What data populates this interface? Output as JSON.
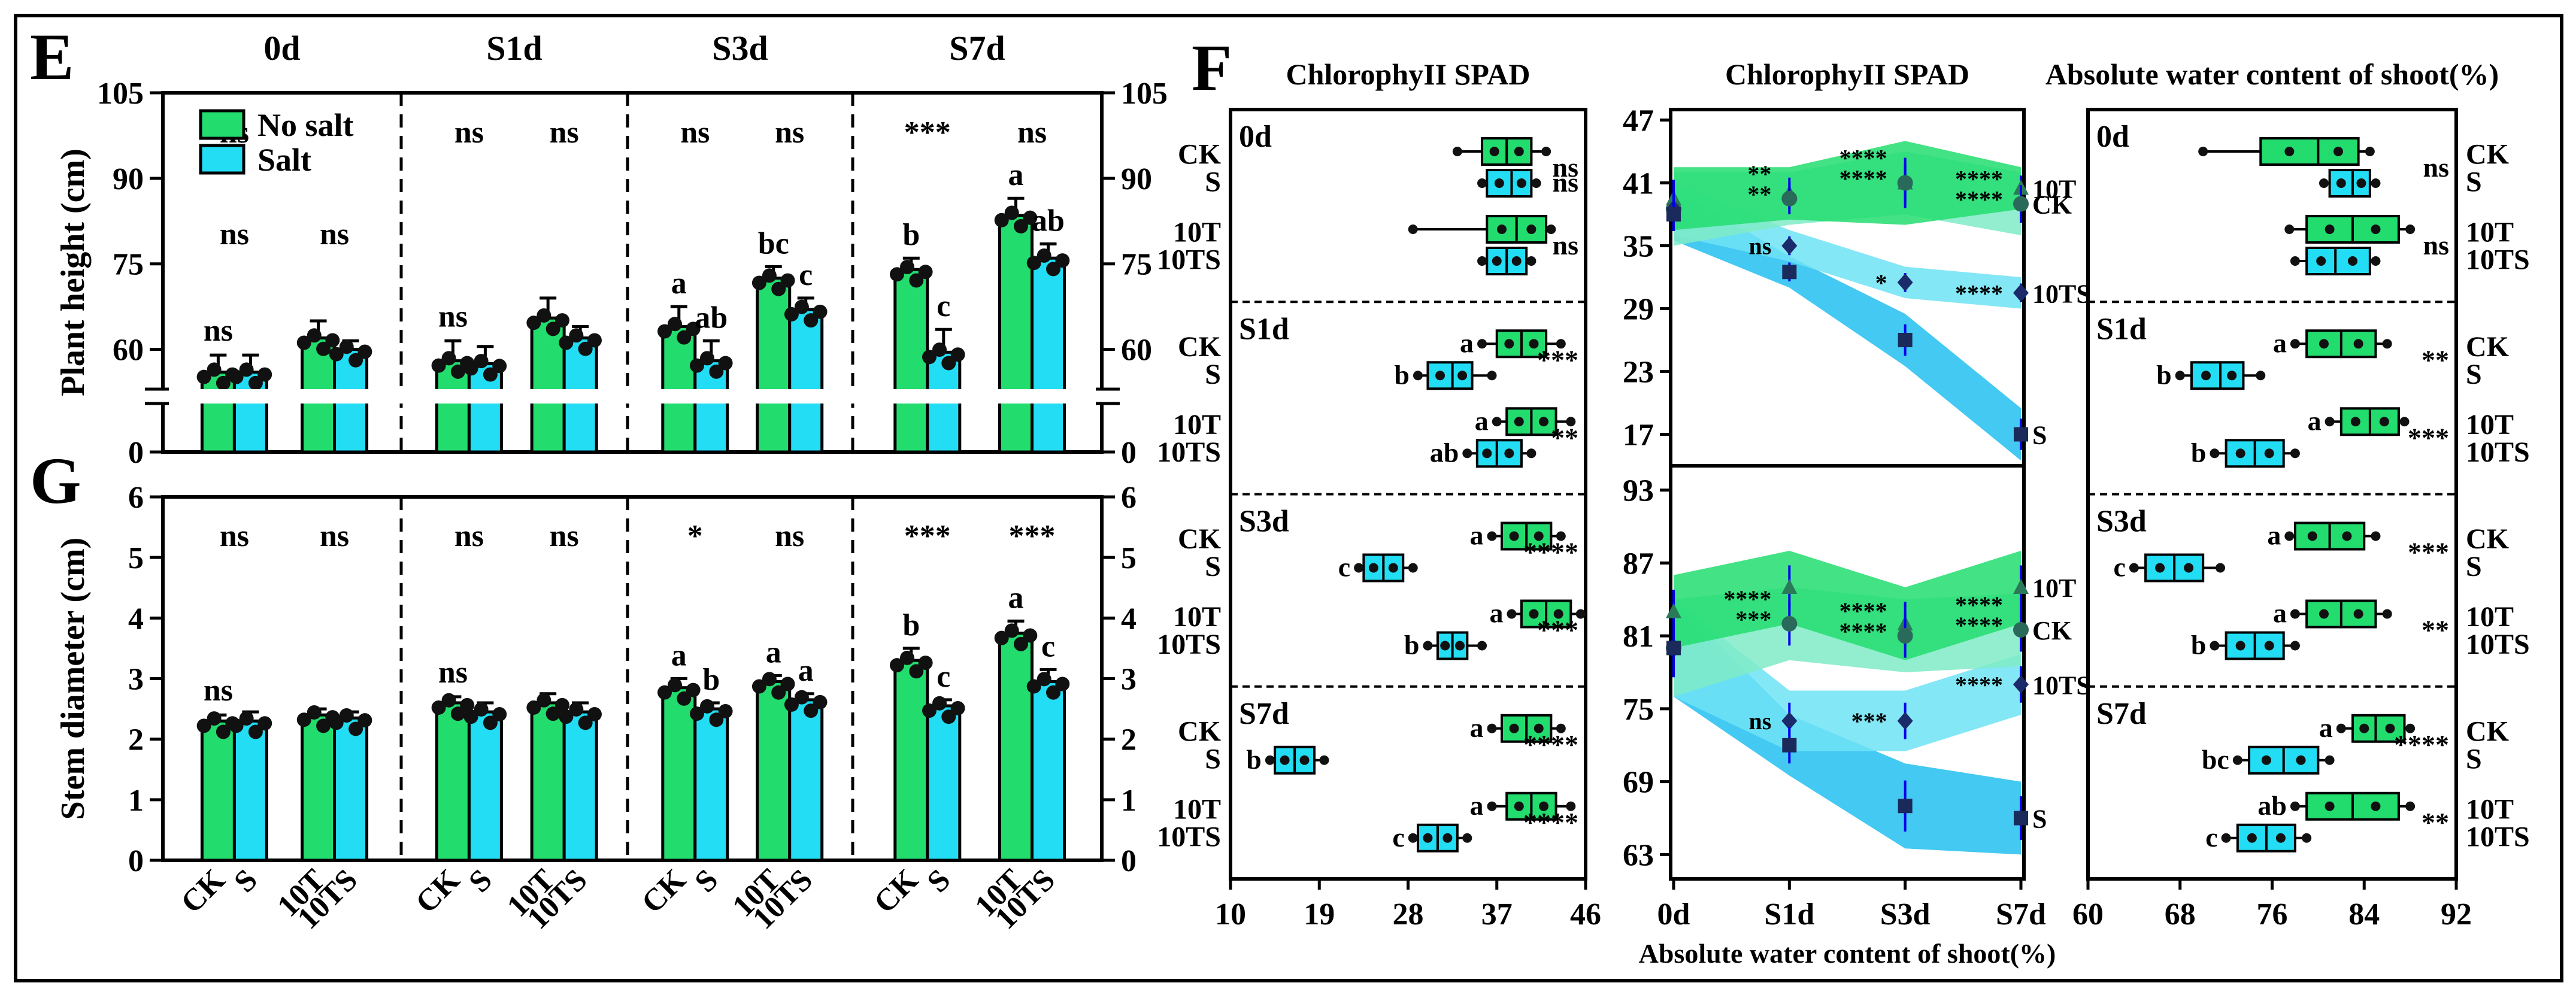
{
  "colors": {
    "no_salt": "#22DD6E",
    "salt": "#22DDF4",
    "ck_band": "#22DD6E",
    "t_band": "#7FEBC6",
    "ts_band": "#6FE3F4",
    "s_band": "#22BFF0",
    "err": "#0000EE"
  },
  "panel_letters": {
    "E": "E",
    "F": "F",
    "G": "G"
  },
  "chart_data": [
    {
      "id": "E",
      "type": "bar",
      "title": "",
      "ylabel": "Plant height (cm)",
      "ylim": [
        0,
        105
      ],
      "yticks_left": [
        "0",
        "60",
        "75",
        "90",
        "105"
      ],
      "yticks_right": [
        "0",
        "60",
        "75",
        "90",
        "105"
      ],
      "time_points": [
        "0d",
        "S1d",
        "S3d",
        "S7d"
      ],
      "legend": [
        "No salt",
        "Salt"
      ],
      "groups": [
        {
          "time": "0d",
          "pair": "CK/S",
          "no_salt": 56.0,
          "salt": 56.0,
          "no_salt_err": 3.0,
          "salt_err": 3.0,
          "letters": [
            "",
            ""
          ],
          "top_sig": "ns",
          "mid_sig": "ns",
          "bar_sig": "ns"
        },
        {
          "time": "0d",
          "pair": "10T/10TS",
          "no_salt": 62.0,
          "salt": 60.0,
          "no_salt_err": 3.0,
          "salt_err": 1.5,
          "letters": [
            "",
            ""
          ],
          "top_sig": "",
          "mid_sig": "ns",
          "bar_sig": ""
        },
        {
          "time": "S1d",
          "pair": "CK/S",
          "no_salt": 58.0,
          "salt": 57.5,
          "no_salt_err": 3.5,
          "salt_err": 3.0,
          "letters": [
            "",
            ""
          ],
          "top_sig": "ns",
          "mid_sig": "",
          "bar_sig": "ns"
        },
        {
          "time": "S1d",
          "pair": "10T/10TS",
          "no_salt": 65.5,
          "salt": 62.0,
          "no_salt_err": 3.5,
          "salt_err": 2.0,
          "letters": [
            "",
            ""
          ],
          "top_sig": "ns",
          "mid_sig": "",
          "bar_sig": ""
        },
        {
          "time": "S3d",
          "pair": "CK/S",
          "no_salt": 64.0,
          "salt": 58.0,
          "no_salt_err": 3.5,
          "salt_err": 3.5,
          "letters": [
            "a",
            "ab"
          ],
          "top_sig": "ns",
          "mid_sig": "",
          "bar_sig": ""
        },
        {
          "time": "S3d",
          "pair": "10T/10TS",
          "no_salt": 72.5,
          "salt": 67.0,
          "no_salt_err": 2.0,
          "salt_err": 2.0,
          "letters": [
            "bc",
            "c"
          ],
          "top_sig": "ns",
          "mid_sig": "",
          "bar_sig": ""
        },
        {
          "time": "S7d",
          "pair": "CK/S",
          "no_salt": 74.0,
          "salt": 59.5,
          "no_salt_err": 2.0,
          "salt_err": 4.0,
          "letters": [
            "b",
            "c"
          ],
          "top_sig": "***",
          "mid_sig": "",
          "bar_sig": ""
        },
        {
          "time": "S7d",
          "pair": "10T/10TS",
          "no_salt": 83.5,
          "salt": 76.0,
          "no_salt_err": 3.0,
          "salt_err": 2.5,
          "letters": [
            "a",
            "ab"
          ],
          "top_sig": "ns",
          "mid_sig": "",
          "bar_sig": ""
        }
      ]
    },
    {
      "id": "G",
      "type": "bar",
      "title": "",
      "ylabel": "Stem diameter (cm)",
      "ylim": [
        0,
        6
      ],
      "yticks_left": [
        "0",
        "1",
        "2",
        "3",
        "4",
        "5",
        "6"
      ],
      "yticks_right": [
        "0",
        "1",
        "2",
        "3",
        "4",
        "5",
        "6"
      ],
      "x_group_labels": [
        [
          "CK",
          "S"
        ],
        [
          "10T",
          "10TS"
        ]
      ],
      "groups": [
        {
          "time": "0d",
          "pair": "CK/S",
          "no_salt": 2.3,
          "salt": 2.3,
          "no_salt_err": 0.1,
          "salt_err": 0.15,
          "letters": [
            "",
            ""
          ],
          "top_sig": "ns",
          "bar_sig": "ns"
        },
        {
          "time": "0d",
          "pair": "10T/10TS",
          "no_salt": 2.4,
          "salt": 2.35,
          "no_salt_err": 0.1,
          "salt_err": 0.1,
          "letters": [
            "",
            ""
          ],
          "top_sig": "ns",
          "bar_sig": ""
        },
        {
          "time": "S1d",
          "pair": "CK/S",
          "no_salt": 2.6,
          "salt": 2.45,
          "no_salt_err": 0.1,
          "salt_err": 0.15,
          "letters": [
            "",
            ""
          ],
          "top_sig": "ns",
          "bar_sig": "ns"
        },
        {
          "time": "S1d",
          "pair": "10T/10TS",
          "no_salt": 2.6,
          "salt": 2.45,
          "no_salt_err": 0.15,
          "salt_err": 0.15,
          "letters": [
            "",
            ""
          ],
          "top_sig": "ns",
          "bar_sig": ""
        },
        {
          "time": "S3d",
          "pair": "CK/S",
          "no_salt": 2.85,
          "salt": 2.5,
          "no_salt_err": 0.15,
          "salt_err": 0.1,
          "letters": [
            "a",
            "b"
          ],
          "top_sig": "*",
          "bar_sig": ""
        },
        {
          "time": "S3d",
          "pair": "10T/10TS",
          "no_salt": 2.95,
          "salt": 2.65,
          "no_salt_err": 0.1,
          "salt_err": 0.1,
          "letters": [
            "a",
            "a"
          ],
          "top_sig": "ns",
          "bar_sig": ""
        },
        {
          "time": "S7d",
          "pair": "CK/S",
          "no_salt": 3.3,
          "salt": 2.55,
          "no_salt_err": 0.2,
          "salt_err": 0.1,
          "letters": [
            "b",
            "c"
          ],
          "top_sig": "***",
          "bar_sig": ""
        },
        {
          "time": "S7d",
          "pair": "10T/10TS",
          "no_salt": 3.75,
          "salt": 2.95,
          "no_salt_err": 0.2,
          "salt_err": 0.2,
          "letters": [
            "a",
            "c"
          ],
          "top_sig": "***",
          "bar_sig": ""
        }
      ]
    },
    {
      "id": "F-left",
      "type": "box",
      "title": "ChlorophyII SPAD",
      "xlim": [
        10,
        46
      ],
      "xticks": [
        "10",
        "19",
        "28",
        "37",
        "46"
      ],
      "periods": [
        "0d",
        "S1d",
        "S3d",
        "S7d"
      ],
      "row_labels": [
        "CK",
        "S",
        "10T",
        "10TS"
      ],
      "boxes": [
        {
          "period": "0d",
          "row": "CK",
          "q1": 35.5,
          "median": 38.0,
          "q3": 40.5,
          "min": 33.0,
          "max": 42.0,
          "letter": "",
          "sig": "ns"
        },
        {
          "period": "0d",
          "row": "S",
          "q1": 36.0,
          "median": 38.5,
          "q3": 40.5,
          "min": 35.5,
          "max": 41.0,
          "letter": "",
          "sig": "ns"
        },
        {
          "period": "0d",
          "row": "10T",
          "q1": 36.0,
          "median": 39.0,
          "q3": 42.0,
          "min": 28.5,
          "max": 42.5,
          "letter": "",
          "sig": "ns"
        },
        {
          "period": "0d",
          "row": "10TS",
          "q1": 36.0,
          "median": 38.0,
          "q3": 40.0,
          "min": 35.5,
          "max": 40.5,
          "letter": "",
          "sig": ""
        },
        {
          "period": "S1d",
          "row": "CK",
          "q1": 37.0,
          "median": 39.5,
          "q3": 42.0,
          "min": 35.5,
          "max": 43.5,
          "letter": "a",
          "sig": "***"
        },
        {
          "period": "S1d",
          "row": "S",
          "q1": 30.0,
          "median": 32.5,
          "q3": 34.5,
          "min": 29.0,
          "max": 36.5,
          "letter": "b",
          "sig": ""
        },
        {
          "period": "S1d",
          "row": "10T",
          "q1": 38.0,
          "median": 40.5,
          "q3": 43.0,
          "min": 37.0,
          "max": 44.5,
          "letter": "a",
          "sig": "**"
        },
        {
          "period": "S1d",
          "row": "10TS",
          "q1": 35.0,
          "median": 37.0,
          "q3": 39.5,
          "min": 34.0,
          "max": 40.5,
          "letter": "ab",
          "sig": ""
        },
        {
          "period": "S3d",
          "row": "CK",
          "q1": 37.5,
          "median": 40.0,
          "q3": 42.5,
          "min": 36.5,
          "max": 43.5,
          "letter": "a",
          "sig": "****"
        },
        {
          "period": "S3d",
          "row": "S",
          "q1": 23.5,
          "median": 25.5,
          "q3": 27.5,
          "min": 23.0,
          "max": 28.5,
          "letter": "c",
          "sig": ""
        },
        {
          "period": "S3d",
          "row": "10T",
          "q1": 39.5,
          "median": 42.0,
          "q3": 44.5,
          "min": 38.5,
          "max": 45.5,
          "letter": "a",
          "sig": "***"
        },
        {
          "period": "S3d",
          "row": "10TS",
          "q1": 31.0,
          "median": 32.5,
          "q3": 34.0,
          "min": 30.0,
          "max": 35.5,
          "letter": "b",
          "sig": ""
        },
        {
          "period": "S7d",
          "row": "CK",
          "q1": 37.5,
          "median": 40.0,
          "q3": 42.5,
          "min": 36.5,
          "max": 43.5,
          "letter": "a",
          "sig": "****"
        },
        {
          "period": "S7d",
          "row": "S",
          "q1": 14.5,
          "median": 16.5,
          "q3": 18.5,
          "min": 14.0,
          "max": 19.5,
          "letter": "b",
          "sig": ""
        },
        {
          "period": "S7d",
          "row": "10T",
          "q1": 38.0,
          "median": 40.5,
          "q3": 43.0,
          "min": 36.5,
          "max": 44.5,
          "letter": "a",
          "sig": "****"
        },
        {
          "period": "S7d",
          "row": "10TS",
          "q1": 29.0,
          "median": 31.0,
          "q3": 33.0,
          "min": 28.5,
          "max": 34.0,
          "letter": "c",
          "sig": ""
        }
      ]
    },
    {
      "id": "F-middle",
      "type": "line",
      "title": "ChlorophyII SPAD",
      "xlabel": "Absolute water content of shoot(%)",
      "categories": [
        "0d",
        "S1d",
        "S3d",
        "S7d"
      ],
      "top": {
        "ylim": [
          14,
          48
        ],
        "yticks": [
          "17",
          "23",
          "29",
          "35",
          "41",
          "47"
        ],
        "series": [
          {
            "name": "10T",
            "values": [
              39.5,
              40.0,
              41.0,
              40.5
            ],
            "band": [
              3.0,
              2.5,
              4.0,
              2.0
            ]
          },
          {
            "name": "CK",
            "values": [
              38.5,
              39.5,
              41.0,
              39.0
            ],
            "band": [
              3.5,
              2.5,
              3.0,
              3.0
            ]
          },
          {
            "name": "10TS",
            "values": [
              38.5,
              35.0,
              31.5,
              30.5
            ],
            "band": [
              2.5,
              1.5,
              1.5,
              1.5
            ]
          },
          {
            "name": "S",
            "values": [
              38.0,
              32.5,
              26.0,
              17.0
            ],
            "band": [
              2.5,
              1.5,
              2.5,
              2.5
            ]
          }
        ],
        "sig_labels": [
          {
            "cat": "S1d",
            "labels": [
              "**",
              "**",
              "ns"
            ]
          },
          {
            "cat": "S3d",
            "labels": [
              "****",
              "****",
              "*"
            ]
          },
          {
            "cat": "S7d",
            "labels": [
              "****",
              "****",
              "****"
            ]
          }
        ]
      },
      "bottom": {
        "ylim": [
          61,
          95
        ],
        "yticks": [
          "63",
          "69",
          "75",
          "81",
          "87",
          "93"
        ],
        "series": [
          {
            "name": "10T",
            "values": [
              83.0,
              85.0,
              82.0,
              85.0
            ],
            "band": [
              3.0,
              3.0,
              3.0,
              3.0
            ]
          },
          {
            "name": "CK",
            "values": [
              80.0,
              82.0,
              81.0,
              81.5
            ],
            "band": [
              4.0,
              3.0,
              3.0,
              3.0
            ]
          },
          {
            "name": "10TS",
            "values": [
              80.0,
              74.0,
              74.0,
              77.0
            ],
            "band": [
              4.0,
              2.5,
              2.5,
              2.5
            ]
          },
          {
            "name": "S",
            "values": [
              80.0,
              72.0,
              67.0,
              66.0
            ],
            "band": [
              4.0,
              2.5,
              3.5,
              3.0
            ]
          }
        ],
        "sig_labels": [
          {
            "cat": "S1d",
            "labels": [
              "****",
              "***",
              "ns"
            ]
          },
          {
            "cat": "S3d",
            "labels": [
              "****",
              "****",
              "***"
            ]
          },
          {
            "cat": "S7d",
            "labels": [
              "****",
              "****",
              "****"
            ]
          }
        ]
      }
    },
    {
      "id": "F-right",
      "type": "box",
      "title": "Absolute water content of shoot(%)",
      "xlim": [
        60,
        92
      ],
      "xticks": [
        "60",
        "68",
        "76",
        "84",
        "92"
      ],
      "periods": [
        "0d",
        "S1d",
        "S3d",
        "S7d"
      ],
      "row_labels": [
        "CK",
        "S",
        "10T",
        "10TS"
      ],
      "boxes": [
        {
          "period": "0d",
          "row": "CK",
          "q1": 75.0,
          "median": 80.0,
          "q3": 83.5,
          "min": 70.0,
          "max": 84.5,
          "letter": "",
          "sig": "ns"
        },
        {
          "period": "0d",
          "row": "S",
          "q1": 81.0,
          "median": 83.0,
          "q3": 84.5,
          "min": 80.5,
          "max": 85.0,
          "letter": "",
          "sig": ""
        },
        {
          "period": "0d",
          "row": "10T",
          "q1": 79.0,
          "median": 83.0,
          "q3": 87.0,
          "min": 77.5,
          "max": 88.0,
          "letter": "",
          "sig": "ns"
        },
        {
          "period": "0d",
          "row": "10TS",
          "q1": 79.0,
          "median": 81.5,
          "q3": 84.5,
          "min": 78.0,
          "max": 85.0,
          "letter": "",
          "sig": ""
        },
        {
          "period": "S1d",
          "row": "CK",
          "q1": 79.0,
          "median": 82.0,
          "q3": 85.0,
          "min": 78.0,
          "max": 86.0,
          "letter": "a",
          "sig": "**"
        },
        {
          "period": "S1d",
          "row": "S",
          "q1": 69.0,
          "median": 71.5,
          "q3": 73.5,
          "min": 68.0,
          "max": 75.0,
          "letter": "b",
          "sig": ""
        },
        {
          "period": "S1d",
          "row": "10T",
          "q1": 82.0,
          "median": 84.5,
          "q3": 87.0,
          "min": 81.0,
          "max": 87.5,
          "letter": "a",
          "sig": "***"
        },
        {
          "period": "S1d",
          "row": "10TS",
          "q1": 72.0,
          "median": 74.5,
          "q3": 77.0,
          "min": 71.0,
          "max": 78.0,
          "letter": "b",
          "sig": ""
        },
        {
          "period": "S3d",
          "row": "CK",
          "q1": 78.0,
          "median": 81.0,
          "q3": 84.0,
          "min": 77.5,
          "max": 85.0,
          "letter": "a",
          "sig": "***"
        },
        {
          "period": "S3d",
          "row": "S",
          "q1": 65.0,
          "median": 67.5,
          "q3": 70.0,
          "min": 64.0,
          "max": 71.5,
          "letter": "c",
          "sig": ""
        },
        {
          "period": "S3d",
          "row": "10T",
          "q1": 79.0,
          "median": 82.0,
          "q3": 85.0,
          "min": 78.0,
          "max": 86.0,
          "letter": "a",
          "sig": "**"
        },
        {
          "period": "S3d",
          "row": "10TS",
          "q1": 72.0,
          "median": 74.5,
          "q3": 77.0,
          "min": 71.0,
          "max": 78.0,
          "letter": "b",
          "sig": ""
        },
        {
          "period": "S7d",
          "row": "CK",
          "q1": 83.0,
          "median": 85.0,
          "q3": 87.5,
          "min": 82.0,
          "max": 88.0,
          "letter": "a",
          "sig": "****"
        },
        {
          "period": "S7d",
          "row": "S",
          "q1": 74.0,
          "median": 77.0,
          "q3": 80.0,
          "min": 73.0,
          "max": 81.0,
          "letter": "bc",
          "sig": ""
        },
        {
          "period": "S7d",
          "row": "10T",
          "q1": 79.0,
          "median": 83.0,
          "q3": 87.0,
          "min": 78.0,
          "max": 88.0,
          "letter": "ab",
          "sig": "**"
        },
        {
          "period": "S7d",
          "row": "10TS",
          "q1": 73.0,
          "median": 75.5,
          "q3": 78.0,
          "min": 72.0,
          "max": 79.0,
          "letter": "c",
          "sig": ""
        }
      ]
    }
  ]
}
